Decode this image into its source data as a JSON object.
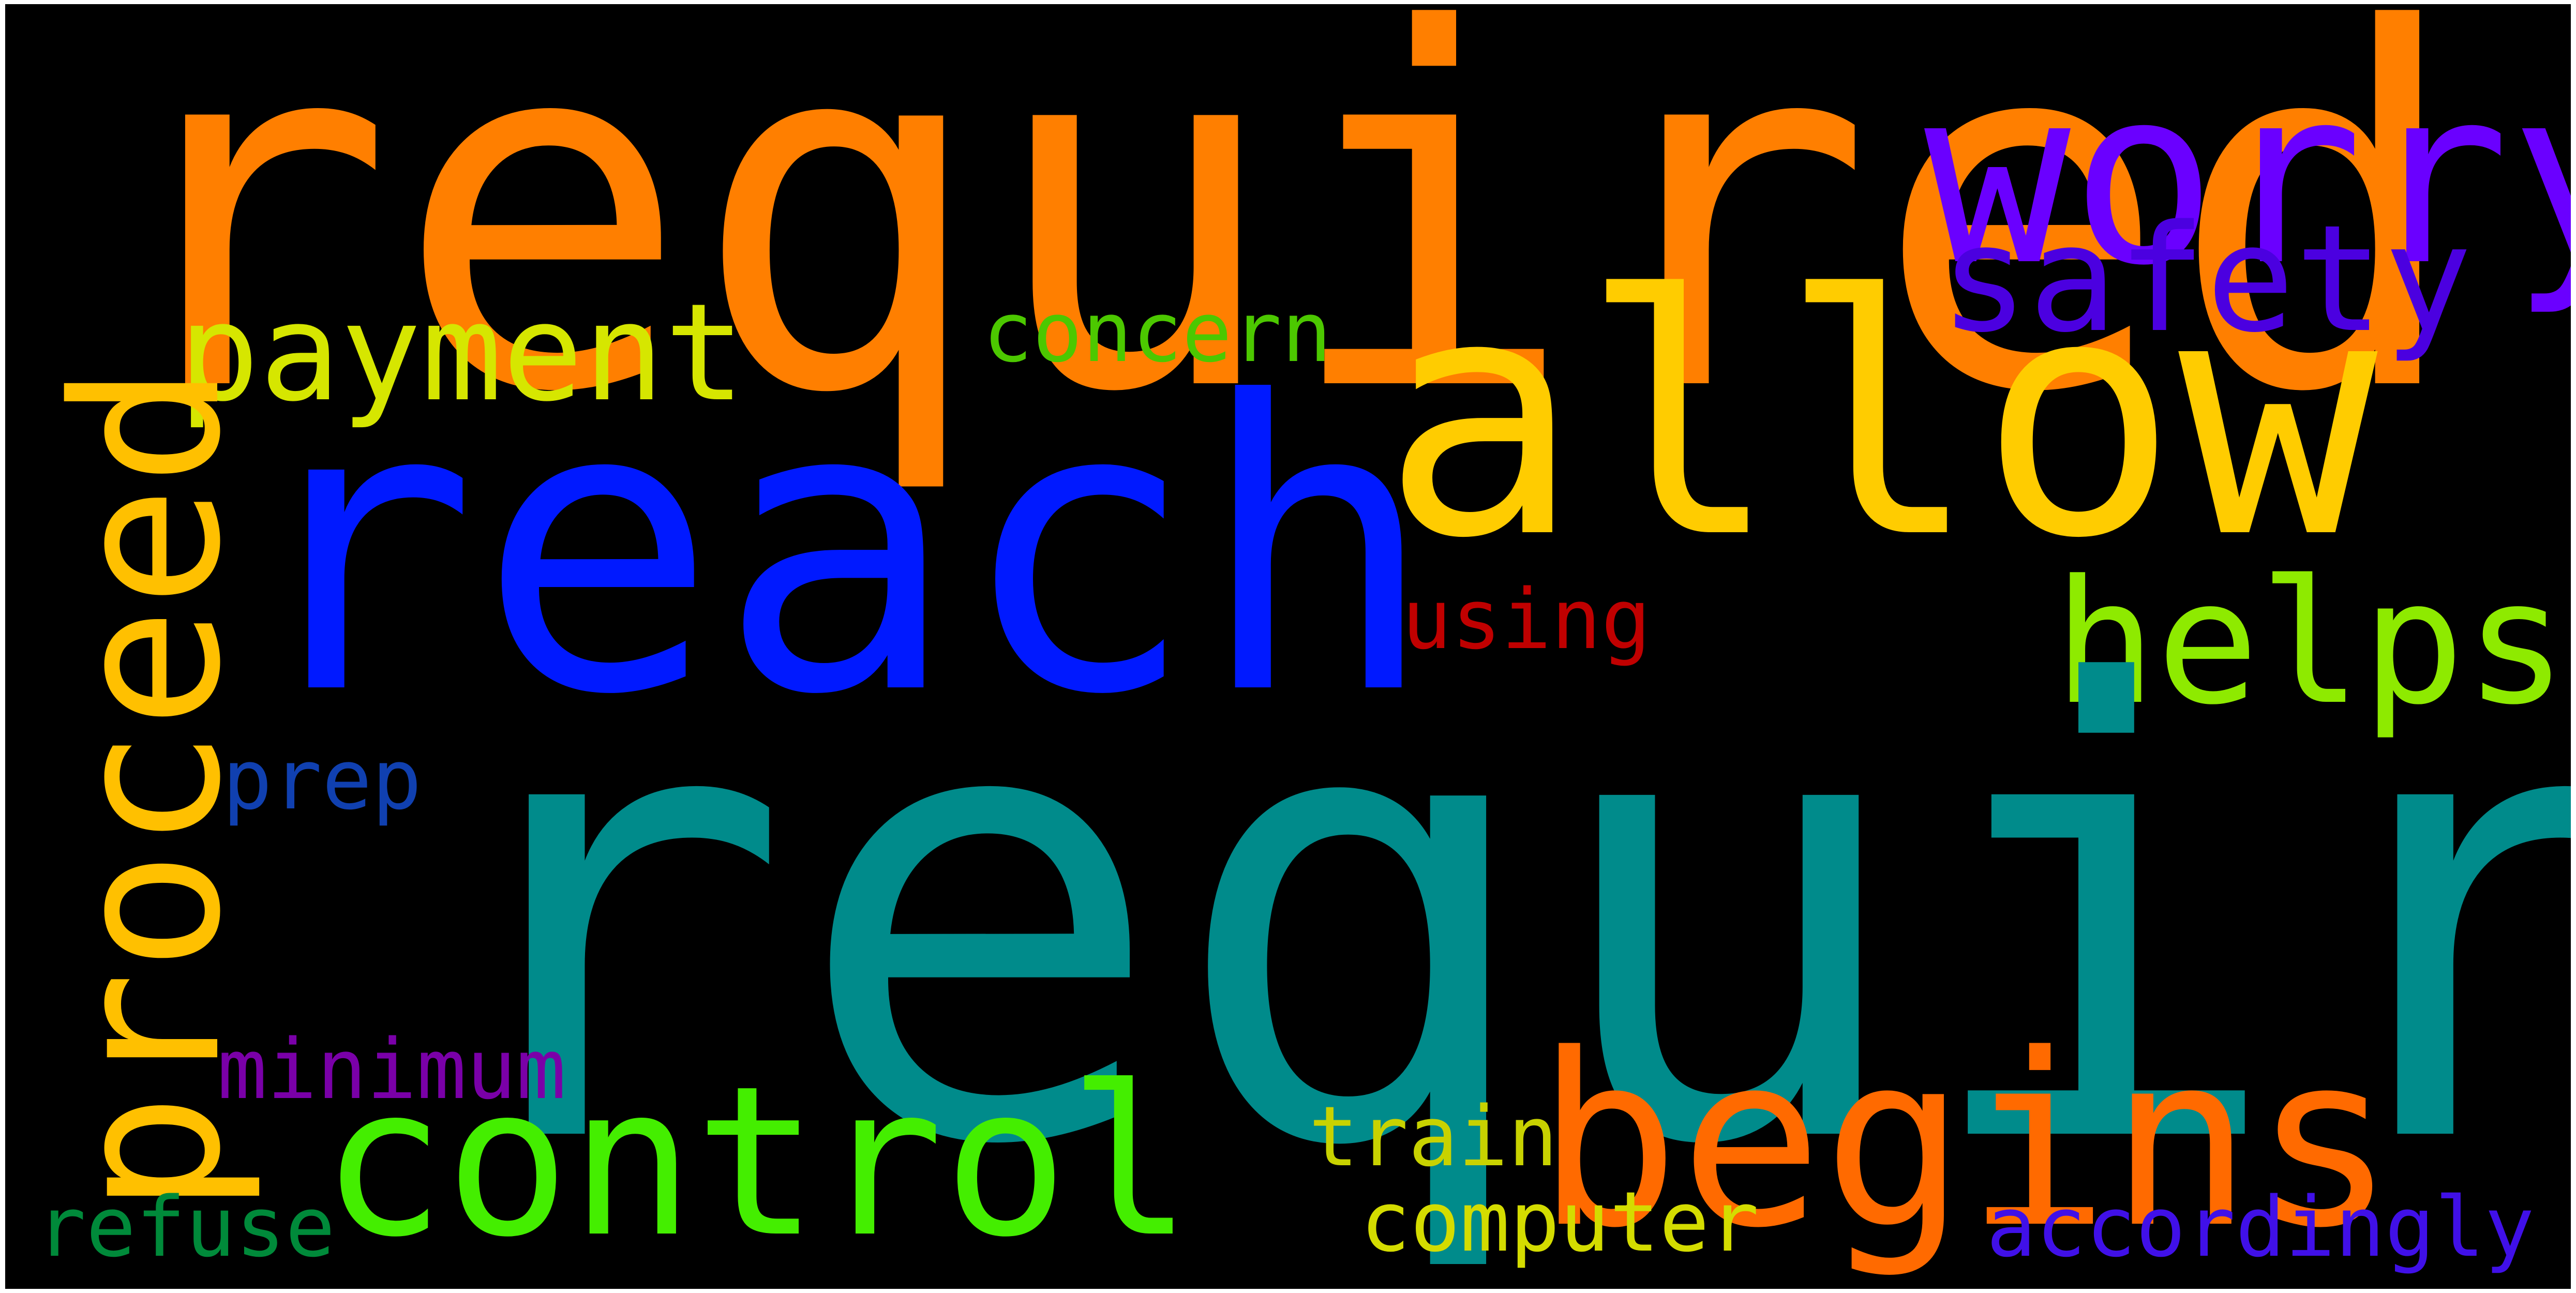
{
  "words": {
    "required": {
      "text": "required",
      "color": "#FF7F00"
    },
    "worry": {
      "text": "worry",
      "color": "#6A00FF"
    },
    "safety": {
      "text": "safety",
      "color": "#4B00E0"
    },
    "allow": {
      "text": "allow",
      "color": "#FFCC00"
    },
    "reach": {
      "text": "reach",
      "color": "#0019FF"
    },
    "payment": {
      "text": "payment",
      "color": "#D6E600"
    },
    "concern": {
      "text": "concern",
      "color": "#4CC800"
    },
    "proceed": {
      "text": "proceed",
      "color": "#FFC000"
    },
    "helps": {
      "text": "helps",
      "color": "#8EEA00"
    },
    "using": {
      "text": "using",
      "color": "#C00000"
    },
    "prep": {
      "text": "prep",
      "color": "#1040B0"
    },
    "require": {
      "text": "require",
      "color": "#008B8B"
    },
    "minimum": {
      "text": "minimum",
      "color": "#7A00A8"
    },
    "control": {
      "text": "control",
      "color": "#44EE00"
    },
    "begins": {
      "text": "begins",
      "color": "#FF6A00"
    },
    "train": {
      "text": "train",
      "color": "#C8D200"
    },
    "refuse": {
      "text": "refuse",
      "color": "#008A3A"
    },
    "computer": {
      "text": "computer",
      "color": "#D4DC00"
    },
    "accordingly": {
      "text": "accordingly",
      "color": "#4010E8"
    }
  }
}
